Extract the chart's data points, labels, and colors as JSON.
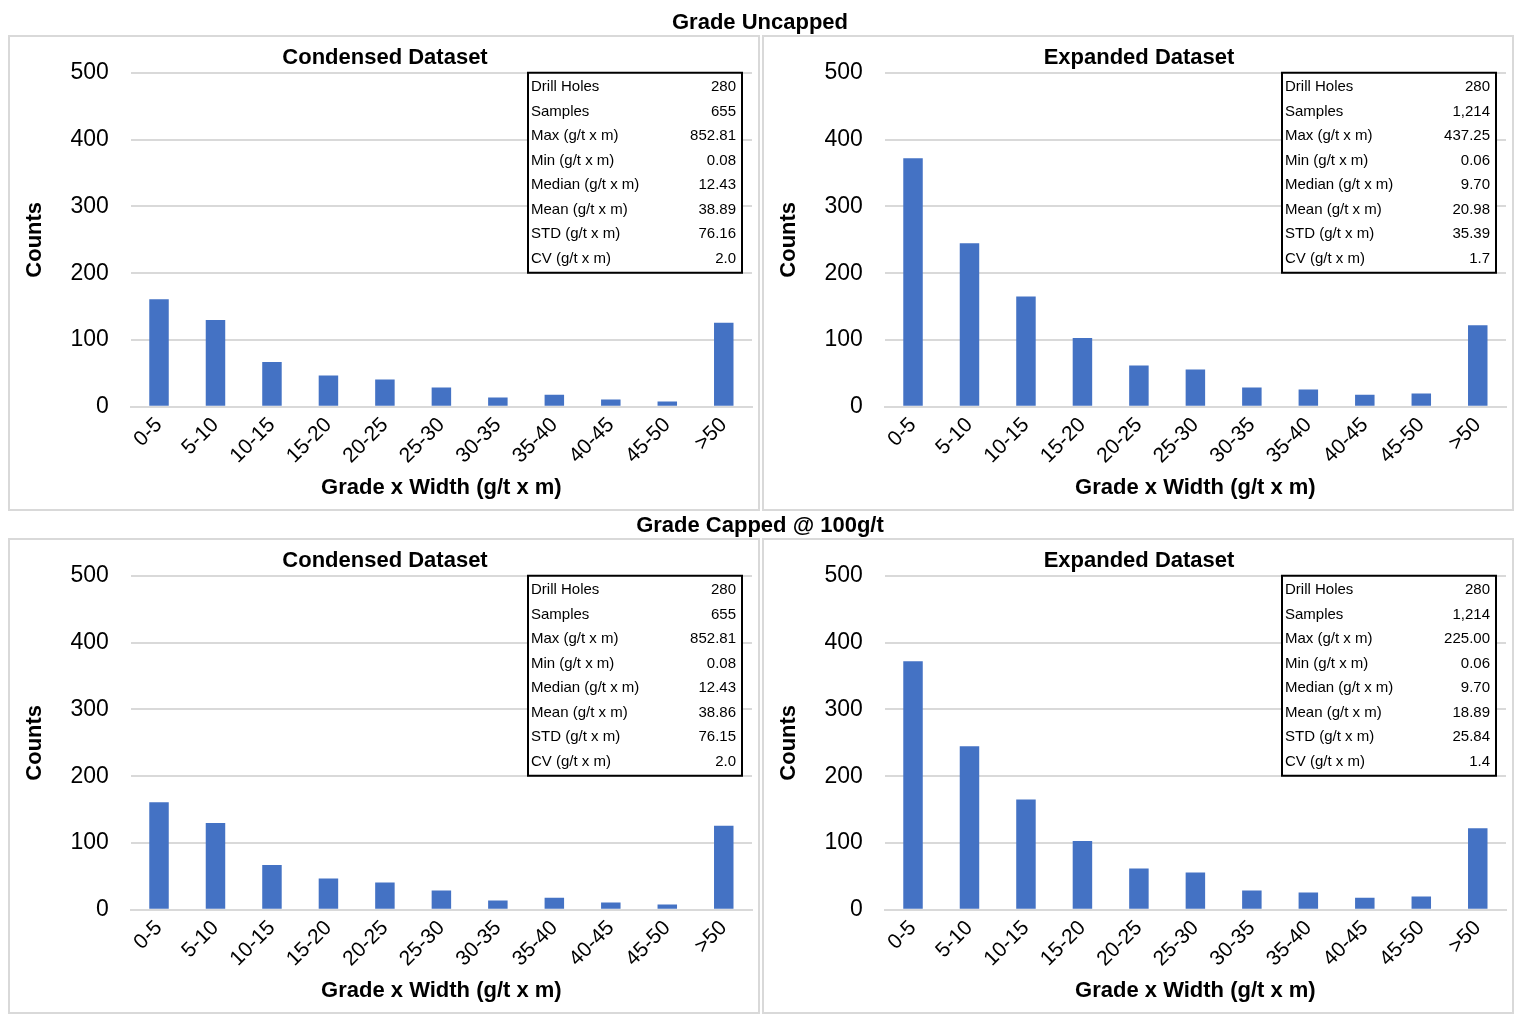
{
  "chart_data": [
    {
      "type": "bar",
      "subtitle": "Grade Uncapped",
      "title": "Condensed Dataset",
      "xlabel": "Grade x Width (g/t x m)",
      "ylabel": "Counts",
      "categories": [
        "0-5",
        "5-10",
        "10-15",
        "15-20",
        "20-25",
        "25-30",
        "30-35",
        "35-40",
        "40-45",
        "45-50",
        ">50"
      ],
      "values": [
        161,
        130,
        67,
        47,
        41,
        29,
        14,
        18,
        11,
        8,
        126
      ],
      "color": "#4472c4",
      "ylim": [
        0,
        500
      ],
      "yticks": [
        0,
        100,
        200,
        300,
        400,
        500
      ],
      "grid": "y",
      "legend": false,
      "annotations": [
        "Drill Holes",
        "280",
        "Samples",
        "655",
        "Max (g/t x m)",
        "852.81",
        "Min (g/t x m)",
        "0.08",
        "Median (g/t x m)",
        "12.43",
        "Mean (g/t x m)",
        "38.89",
        "STD (g/t x m)",
        "76.16",
        "CV (g/t x m)",
        "2.0"
      ]
    },
    {
      "type": "bar",
      "title": "Expanded Dataset",
      "xlabel": "Grade x Width (g/t x m)",
      "ylabel": "Counts",
      "categories": [
        "0-5",
        "5-10",
        "10-15",
        "15-20",
        "20-25",
        "25-30",
        "30-35",
        "35-40",
        "40-45",
        "45-50",
        ">50"
      ],
      "values": [
        372,
        245,
        165,
        103,
        62,
        56,
        29,
        26,
        18,
        20,
        122
      ],
      "color": "#4472c4",
      "ylim": [
        0,
        500
      ],
      "yticks": [
        0,
        100,
        200,
        300,
        400,
        500
      ],
      "grid": "y",
      "legend": false,
      "annotations": [
        "Drill Holes",
        "280",
        "Samples",
        "1,214",
        "Max (g/t x m)",
        "437.25",
        "Min (g/t x m)",
        "0.06",
        "Median (g/t x m)",
        "9.70",
        "Mean (g/t x m)",
        "20.98",
        "STD (g/t x m)",
        "35.39",
        "CV (g/t x m)",
        "1.7"
      ]
    },
    {
      "type": "bar",
      "subtitle": "Grade Capped @ 100g/t",
      "title": "Condensed Dataset",
      "xlabel": "Grade x Width (g/t x m)",
      "ylabel": "Counts",
      "categories": [
        "0-5",
        "5-10",
        "10-15",
        "15-20",
        "20-25",
        "25-30",
        "30-35",
        "35-40",
        "40-45",
        "45-50",
        ">50"
      ],
      "values": [
        161,
        130,
        67,
        47,
        41,
        29,
        14,
        18,
        11,
        8,
        126
      ],
      "color": "#4472c4",
      "ylim": [
        0,
        500
      ],
      "yticks": [
        0,
        100,
        200,
        300,
        400,
        500
      ],
      "grid": "y",
      "legend": false,
      "annotations": [
        "Drill Holes",
        "280",
        "Samples",
        "655",
        "Max (g/t x m)",
        "852.81",
        "Min (g/t x m)",
        "0.08",
        "Median (g/t x m)",
        "12.43",
        "Mean (g/t x m)",
        "38.86",
        "STD (g/t x m)",
        "76.15",
        "CV (g/t x m)",
        "2.0"
      ]
    },
    {
      "type": "bar",
      "title": "Expanded Dataset",
      "xlabel": "Grade x Width (g/t x m)",
      "ylabel": "Counts",
      "categories": [
        "0-5",
        "5-10",
        "10-15",
        "15-20",
        "20-25",
        "25-30",
        "30-35",
        "35-40",
        "40-45",
        "45-50",
        ">50"
      ],
      "values": [
        372,
        245,
        165,
        103,
        62,
        56,
        29,
        26,
        18,
        20,
        122
      ],
      "color": "#4472c4",
      "ylim": [
        0,
        500
      ],
      "yticks": [
        0,
        100,
        200,
        300,
        400,
        500
      ],
      "grid": "y",
      "legend": false,
      "annotations": [
        "Drill Holes",
        "280",
        "Samples",
        "1,214",
        "Max (g/t x m)",
        "225.00",
        "Min (g/t x m)",
        "0.06",
        "Median (g/t x m)",
        "9.70",
        "Mean (g/t x m)",
        "18.89",
        "STD (g/t x m)",
        "25.84",
        "CV (g/t x m)",
        "1.4"
      ]
    }
  ]
}
